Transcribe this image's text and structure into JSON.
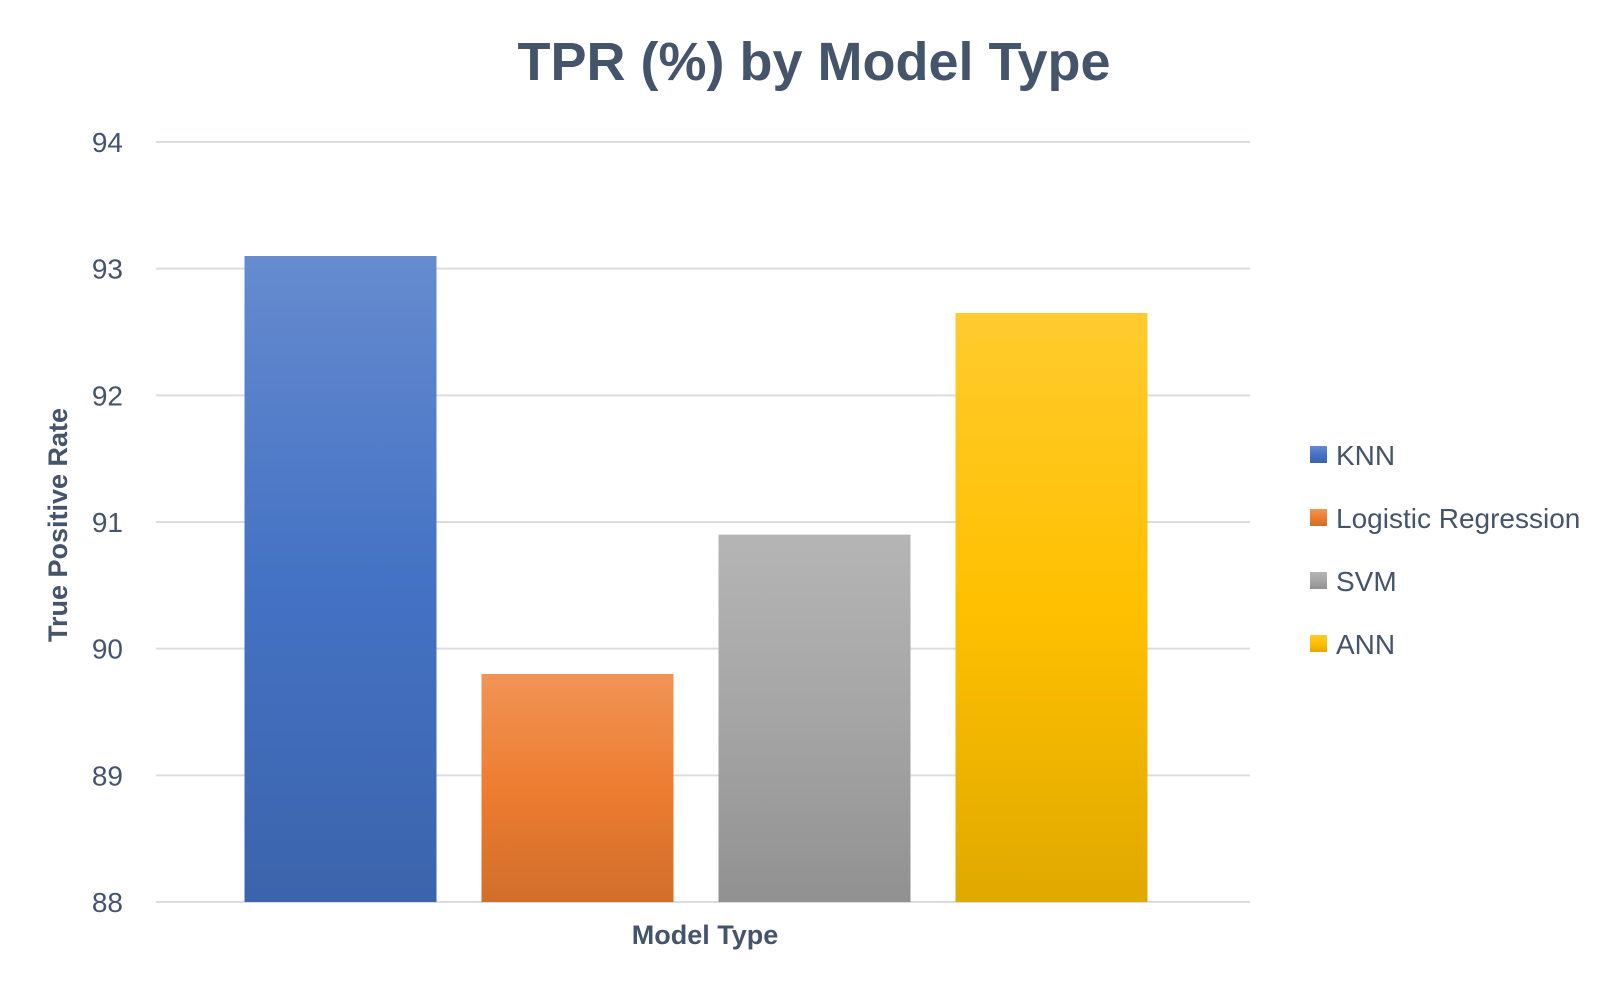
{
  "chart_data": {
    "type": "bar",
    "title": "TPR (%) by Model Type",
    "xlabel": "Model Type",
    "ylabel": "True Positive Rate",
    "ylim": [
      88,
      94
    ],
    "yticks": [
      88,
      89,
      90,
      91,
      92,
      93,
      94
    ],
    "grid": true,
    "legend_position": "right",
    "series": [
      {
        "name": "KNN",
        "values": [
          93.1
        ],
        "color": "#4472c4"
      },
      {
        "name": "Logistic Regression",
        "values": [
          89.8
        ],
        "color": "#ed7d31"
      },
      {
        "name": "SVM",
        "values": [
          90.9
        ],
        "color": "#a5a5a5"
      },
      {
        "name": "ANN",
        "values": [
          92.65
        ],
        "color": "#ffc000"
      }
    ]
  }
}
